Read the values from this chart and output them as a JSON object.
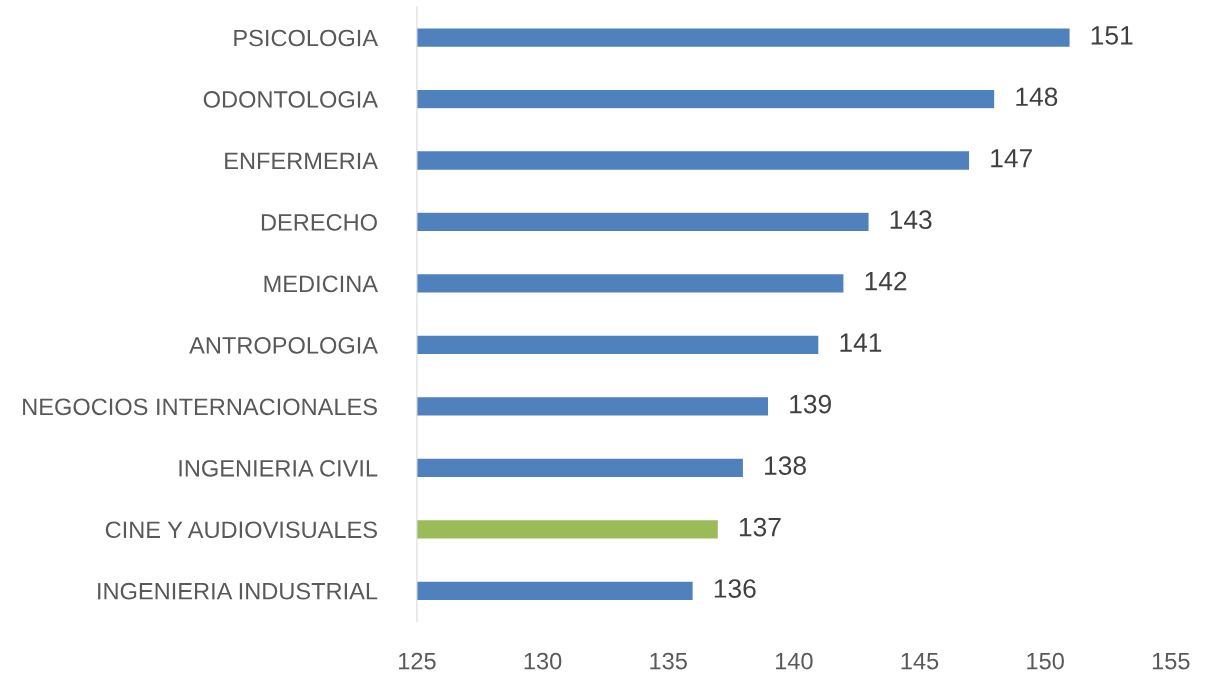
{
  "chart_data": {
    "type": "bar",
    "orientation": "horizontal",
    "categories": [
      "PSICOLOGIA",
      "ODONTOLOGIA",
      "ENFERMERIA",
      "DERECHO",
      "MEDICINA",
      "ANTROPOLOGIA",
      "NEGOCIOS INTERNACIONALES",
      "INGENIERIA CIVIL",
      "CINE Y AUDIOVISUALES",
      "INGENIERIA INDUSTRIAL"
    ],
    "values": [
      151,
      148,
      147,
      143,
      142,
      141,
      139,
      138,
      137,
      136
    ],
    "colors": [
      "#4f81bd",
      "#4f81bd",
      "#4f81bd",
      "#4f81bd",
      "#4f81bd",
      "#4f81bd",
      "#4f81bd",
      "#4f81bd",
      "#9bbb59",
      "#4f81bd"
    ],
    "xlim": [
      125,
      155
    ],
    "xticks": [
      125,
      130,
      135,
      140,
      145,
      150,
      155
    ],
    "data_labels": true,
    "grid": false,
    "legend": false
  }
}
